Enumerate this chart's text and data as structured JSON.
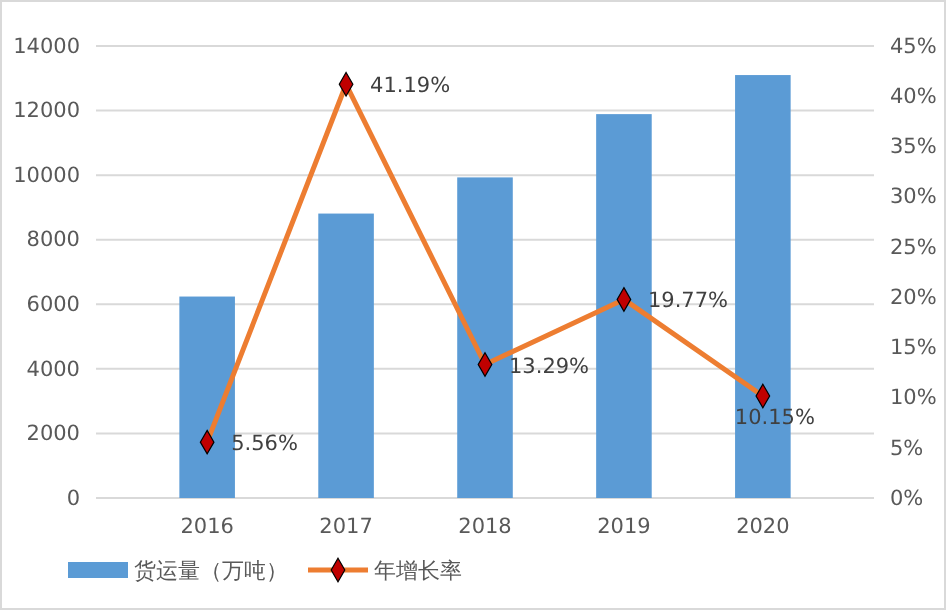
{
  "chart_data": {
    "type": "bar",
    "categories": [
      "2016",
      "2017",
      "2018",
      "2019",
      "2020"
    ],
    "series": [
      {
        "name": "货运量（万吨）",
        "color": "#5b9bd5",
        "values": [
          6240,
          8810,
          9930,
          11890,
          13100
        ]
      },
      {
        "name": "年增长率",
        "type": "line",
        "axis": "y2",
        "color": "#ed7d31",
        "marker": "diamond",
        "values": [
          5.56,
          41.19,
          13.29,
          19.77,
          10.15
        ],
        "value_labels": [
          "5.56%",
          "41.19%",
          "13.29%",
          "19.77%",
          "10.15%"
        ]
      }
    ],
    "ylim": [
      0,
      14000
    ],
    "yticks": [
      0,
      2000,
      4000,
      6000,
      8000,
      10000,
      12000,
      14000
    ],
    "y2lim": [
      0,
      45
    ],
    "y2ticks": [
      {
        "value": 0,
        "label": "0%"
      },
      {
        "value": 5,
        "label": "5%"
      },
      {
        "value": 10,
        "label": "10%"
      },
      {
        "value": 15,
        "label": "15%"
      },
      {
        "value": 20,
        "label": "20%"
      },
      {
        "value": 25,
        "label": "25%"
      },
      {
        "value": 30,
        "label": "30%"
      },
      {
        "value": 35,
        "label": "35%"
      },
      {
        "value": 40,
        "label": "40%"
      },
      {
        "value": 45,
        "label": "45%"
      }
    ],
    "grid": "y",
    "legend": "bottom"
  }
}
